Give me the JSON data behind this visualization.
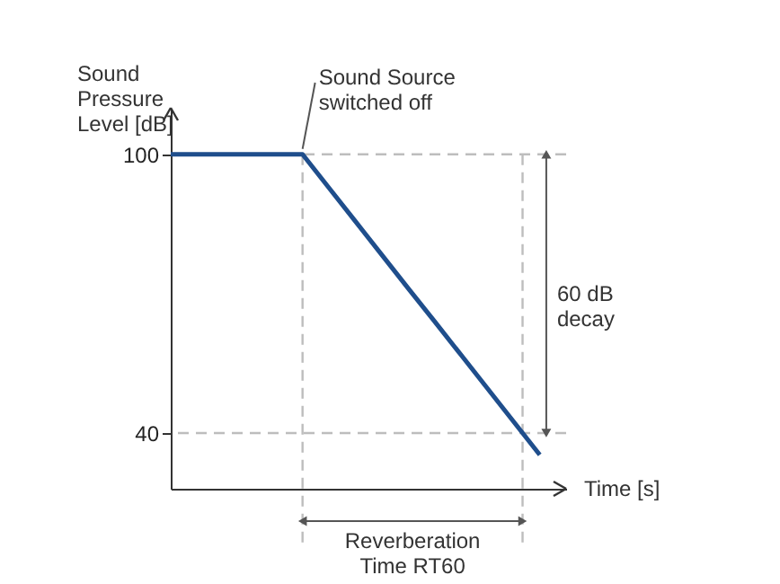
{
  "chart_data": {
    "type": "line",
    "ylabel": "Sound\nPressure\nLevel [dB]",
    "xlabel": "Time [s]",
    "categories": [
      null,
      null,
      null,
      null,
      null,
      null,
      null,
      null,
      null,
      null,
      null,
      null,
      null,
      null,
      null,
      null
    ],
    "series": [
      {
        "color": "#1f4e8c",
        "values": [
          100,
          100,
          100,
          100,
          100,
          100,
          92.8,
          85.6,
          78.4,
          71.2,
          64.1,
          56.9,
          49.7,
          42.5,
          35.3,
          null
        ]
      }
    ],
    "ylim": [
      28,
      110
    ],
    "yticks": [
      40,
      100
    ],
    "tick_labels": "y",
    "grid": false,
    "line_style": "solid",
    "ref_lines": [
      {
        "axis": "y",
        "value": 100,
        "color": "#bdbdbd",
        "line_style": "dashed"
      },
      {
        "axis": "y",
        "value": 40,
        "color": "#bdbdbd",
        "line_style": "dashed"
      }
    ],
    "annotations": [
      "Sound Source\nswitched off",
      "60 dB\ndecay",
      "Reverberation\nTime RT60"
    ]
  }
}
